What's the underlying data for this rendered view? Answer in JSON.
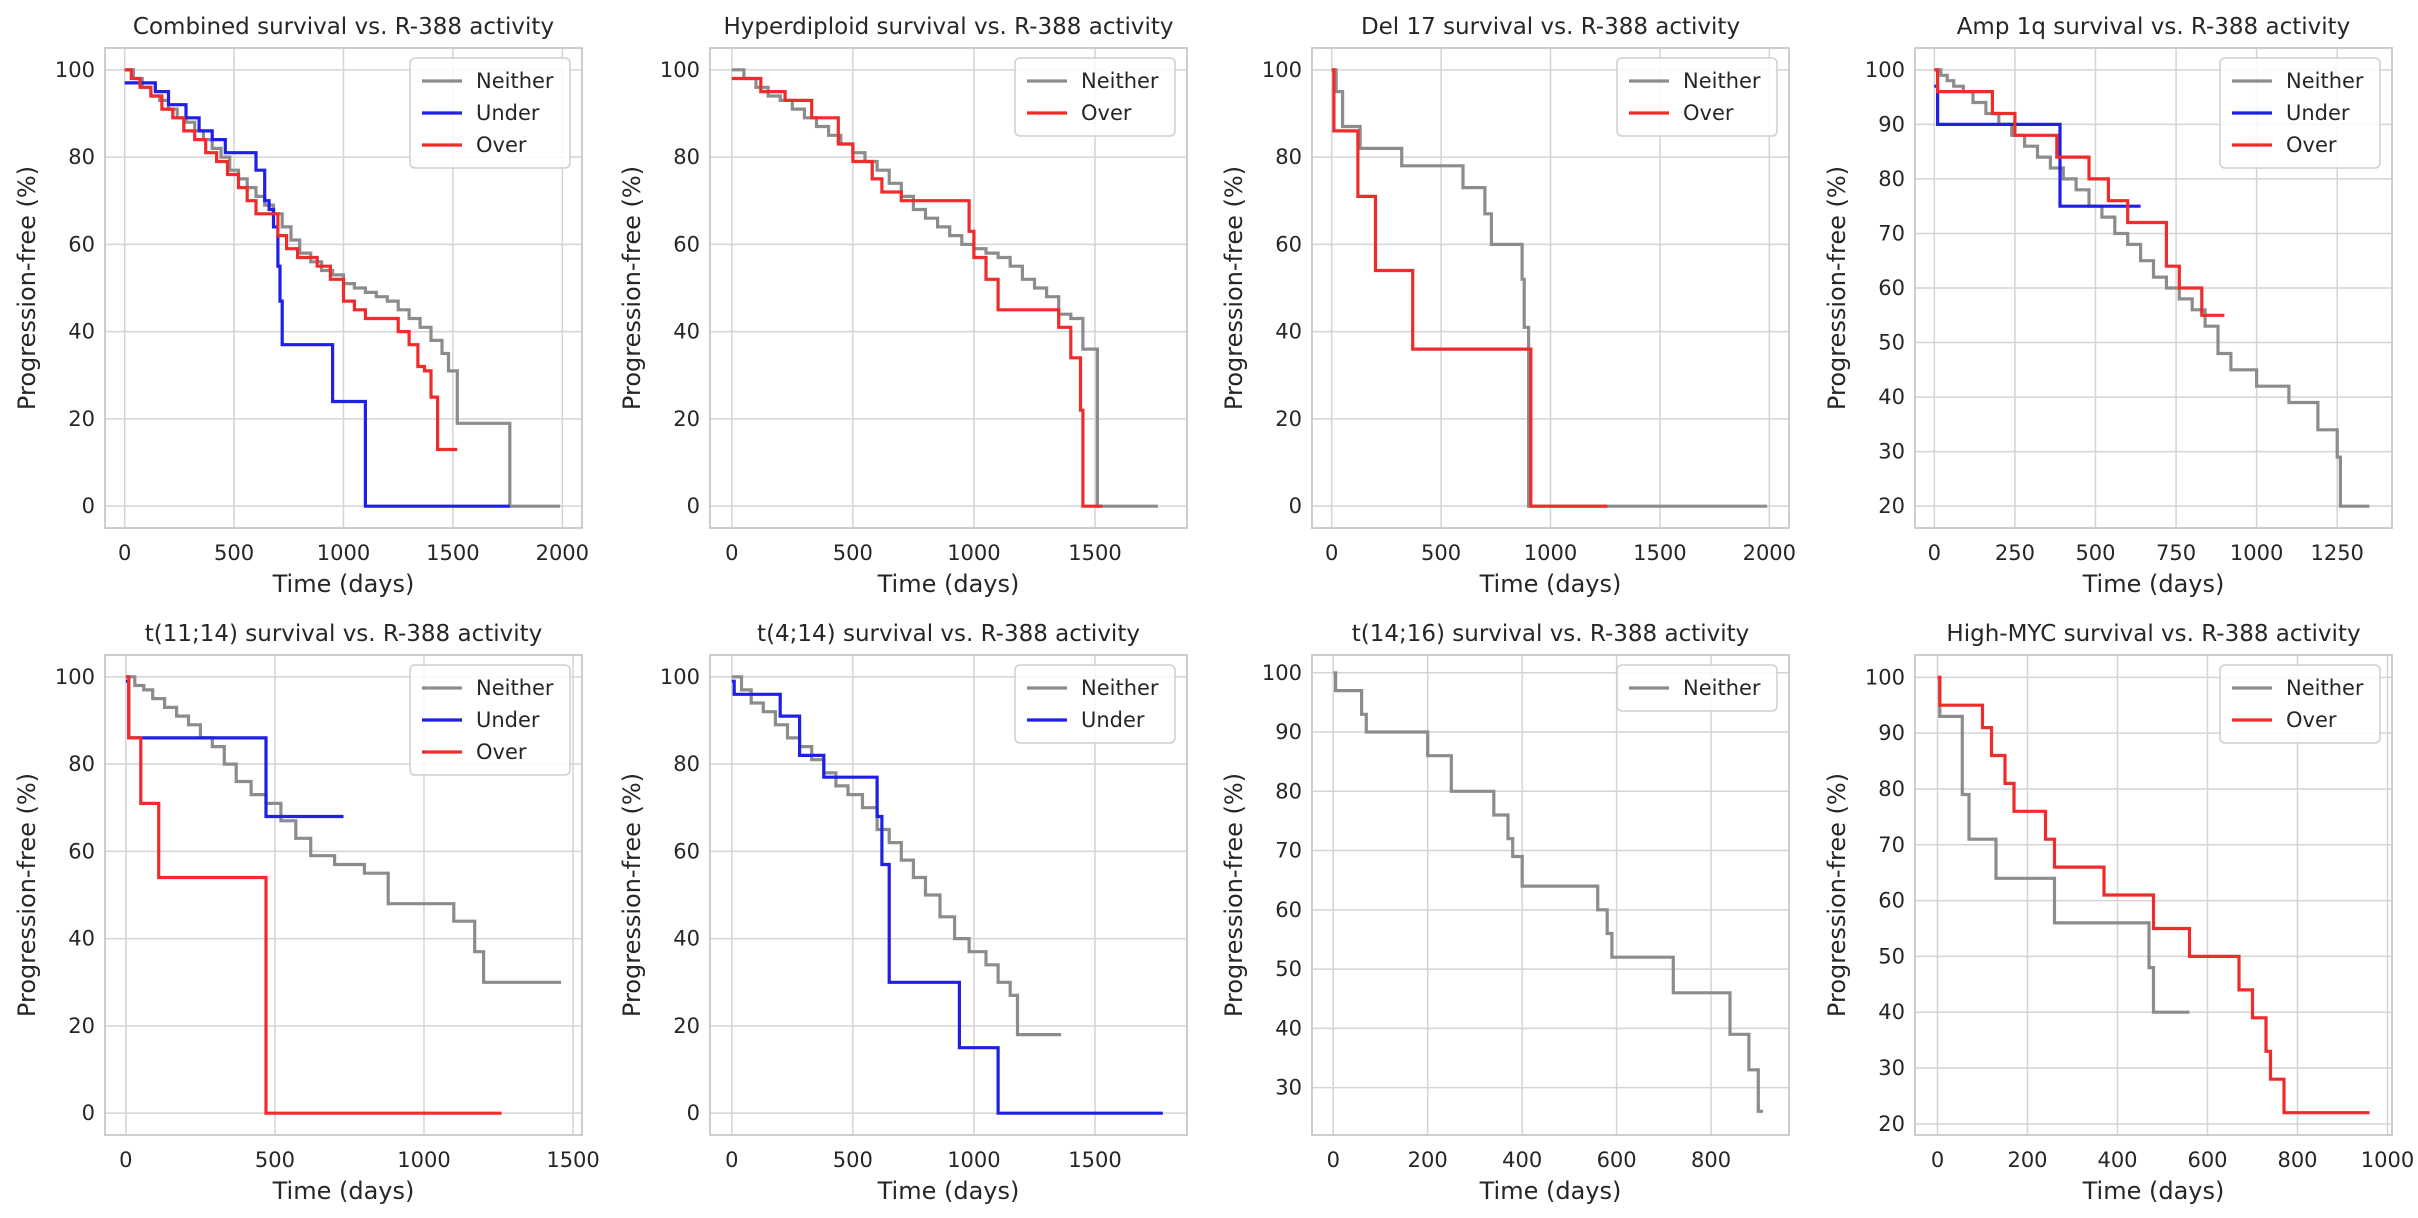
{
  "figure": {
    "description": "Kaplan-Meier progression-free survival panels"
  },
  "colors": {
    "Neither": "#8c8c8c",
    "Under": "#1f1fe6",
    "Over": "#ef2b2b",
    "grid": "#d4d4d4",
    "frame": "#c8c8c8"
  },
  "chart_data": [
    {
      "type": "line",
      "step": true,
      "title": "Combined survival vs. R-388 activity",
      "xlabel": "Time (days)",
      "ylabel": "Progression-free (%)",
      "xlim": [
        -90,
        2090
      ],
      "ylim": [
        -5,
        105
      ],
      "xticks": [
        0,
        500,
        1000,
        1500,
        2000
      ],
      "xtick_labels": [
        "0",
        "500",
        "1000",
        "1500",
        "2000"
      ],
      "yticks": [
        0,
        20,
        40,
        60,
        80,
        100
      ],
      "ytick_labels": [
        "0",
        "20",
        "40",
        "60",
        "80",
        "100"
      ],
      "legend": [
        "Neither",
        "Under",
        "Over"
      ],
      "series": [
        {
          "name": "Neither",
          "x": [
            0,
            40,
            80,
            120,
            160,
            200,
            240,
            280,
            320,
            360,
            400,
            440,
            480,
            520,
            560,
            600,
            640,
            680,
            720,
            760,
            800,
            850,
            900,
            950,
            1000,
            1050,
            1100,
            1150,
            1200,
            1250,
            1300,
            1350,
            1400,
            1450,
            1480,
            1500,
            1520,
            1760,
            1990
          ],
          "y": [
            100,
            98,
            96,
            94,
            93,
            91,
            89,
            88,
            86,
            84,
            82,
            80,
            77,
            75,
            73,
            71,
            69,
            67,
            64,
            61,
            58,
            56,
            54,
            53,
            51,
            50,
            49,
            48,
            47,
            45,
            43,
            41,
            38,
            35,
            31,
            31,
            19,
            0,
            0
          ]
        },
        {
          "name": "Under",
          "x": [
            0,
            70,
            140,
            200,
            280,
            340,
            400,
            460,
            540,
            600,
            640,
            660,
            680,
            700,
            710,
            720,
            760,
            950,
            1100,
            1760
          ],
          "y": [
            97,
            97,
            95,
            92,
            89,
            86,
            84,
            81,
            81,
            77,
            70,
            68,
            64,
            55,
            47,
            37,
            37,
            24,
            0,
            0
          ]
        },
        {
          "name": "Over",
          "x": [
            0,
            30,
            70,
            120,
            170,
            220,
            270,
            320,
            370,
            420,
            470,
            520,
            560,
            600,
            650,
            700,
            740,
            790,
            830,
            880,
            940,
            1000,
            1050,
            1100,
            1150,
            1200,
            1250,
            1300,
            1340,
            1370,
            1400,
            1430,
            1450,
            1520
          ],
          "y": [
            100,
            98,
            96,
            94,
            91,
            89,
            86,
            84,
            81,
            79,
            76,
            73,
            70,
            67,
            67,
            62,
            59,
            57,
            57,
            55,
            52,
            47,
            45,
            43,
            43,
            43,
            40,
            37,
            32,
            31,
            25,
            13,
            13,
            13
          ]
        }
      ]
    },
    {
      "type": "line",
      "step": true,
      "title": "Hyperdiploid survival vs. R-388 activity",
      "xlabel": "Time (days)",
      "ylabel": "Progression-free (%)",
      "xlim": [
        -90,
        1880
      ],
      "ylim": [
        -5,
        105
      ],
      "xticks": [
        0,
        500,
        1000,
        1500
      ],
      "xtick_labels": [
        "0",
        "500",
        "1000",
        "1500"
      ],
      "yticks": [
        0,
        20,
        40,
        60,
        80,
        100
      ],
      "ytick_labels": [
        "0",
        "20",
        "40",
        "60",
        "80",
        "100"
      ],
      "legend": [
        "Neither",
        "Over"
      ],
      "series": [
        {
          "name": "Neither",
          "x": [
            0,
            50,
            100,
            150,
            200,
            250,
            300,
            350,
            400,
            450,
            500,
            550,
            600,
            650,
            700,
            750,
            800,
            850,
            900,
            950,
            1000,
            1050,
            1100,
            1150,
            1200,
            1250,
            1300,
            1350,
            1400,
            1450,
            1500,
            1510,
            1760
          ],
          "y": [
            100,
            98,
            96,
            94,
            93,
            91,
            89,
            87,
            85,
            83,
            81,
            79,
            77,
            74,
            71,
            68,
            66,
            64,
            62,
            60,
            59,
            58,
            57,
            55,
            52,
            50,
            48,
            44,
            43,
            36,
            36,
            0,
            0
          ]
        },
        {
          "name": "Over",
          "x": [
            0,
            60,
            120,
            220,
            330,
            440,
            500,
            580,
            620,
            700,
            840,
            980,
            1000,
            1050,
            1100,
            1260,
            1350,
            1400,
            1440,
            1450,
            1530
          ],
          "y": [
            98,
            98,
            95,
            93,
            89,
            83,
            79,
            75,
            72,
            70,
            70,
            63,
            57,
            52,
            45,
            45,
            41,
            34,
            22,
            0,
            0
          ]
        }
      ]
    },
    {
      "type": "line",
      "step": true,
      "title": "Del 17 survival vs. R-388 activity",
      "xlabel": "Time (days)",
      "ylabel": "Progression-free (%)",
      "xlim": [
        -90,
        2090
      ],
      "ylim": [
        -5,
        105
      ],
      "xticks": [
        0,
        500,
        1000,
        1500,
        2000
      ],
      "xtick_labels": [
        "0",
        "500",
        "1000",
        "1500",
        "2000"
      ],
      "yticks": [
        0,
        20,
        40,
        60,
        80,
        100
      ],
      "ytick_labels": [
        "0",
        "20",
        "40",
        "60",
        "80",
        "100"
      ],
      "legend": [
        "Neither",
        "Over"
      ],
      "series": [
        {
          "name": "Neither",
          "x": [
            0,
            20,
            50,
            130,
            320,
            600,
            700,
            730,
            870,
            880,
            900,
            920,
            1990
          ],
          "y": [
            100,
            95,
            87,
            82,
            78,
            73,
            67,
            60,
            52,
            41,
            0,
            0,
            0
          ]
        },
        {
          "name": "Over",
          "x": [
            0,
            10,
            120,
            200,
            370,
            900,
            910,
            1260
          ],
          "y": [
            100,
            86,
            71,
            54,
            36,
            36,
            0,
            0
          ]
        }
      ]
    },
    {
      "type": "line",
      "step": true,
      "title": "Amp 1q survival vs. R-388 activity",
      "xlabel": "Time (days)",
      "ylabel": "Progression-free (%)",
      "xlim": [
        -60,
        1420
      ],
      "ylim": [
        16,
        104
      ],
      "xticks": [
        0,
        250,
        500,
        750,
        1000,
        1250
      ],
      "xtick_labels": [
        "0",
        "250",
        "500",
        "750",
        "1000",
        "1250"
      ],
      "yticks": [
        20,
        30,
        40,
        50,
        60,
        70,
        80,
        90,
        100
      ],
      "ytick_labels": [
        "20",
        "30",
        "40",
        "50",
        "60",
        "70",
        "80",
        "90",
        "100"
      ],
      "legend": [
        "Neither",
        "Under",
        "Over"
      ],
      "series": [
        {
          "name": "Neither",
          "x": [
            0,
            20,
            40,
            60,
            90,
            120,
            160,
            200,
            240,
            280,
            320,
            360,
            400,
            440,
            480,
            520,
            560,
            600,
            640,
            680,
            720,
            760,
            800,
            840,
            880,
            920,
            1000,
            1100,
            1190,
            1250,
            1260,
            1270,
            1350
          ],
          "y": [
            100,
            99,
            98,
            97,
            96,
            94,
            92,
            90,
            88,
            86,
            84,
            82,
            80,
            78,
            75,
            73,
            70,
            68,
            65,
            62,
            60,
            58,
            56,
            53,
            48,
            45,
            42,
            39,
            34,
            29,
            20,
            20,
            20
          ]
        },
        {
          "name": "Under",
          "x": [
            0,
            10,
            380,
            390,
            640
          ],
          "y": [
            97,
            90,
            90,
            75,
            75
          ]
        },
        {
          "name": "Over",
          "x": [
            0,
            10,
            180,
            250,
            380,
            480,
            540,
            600,
            700,
            720,
            760,
            830,
            900
          ],
          "y": [
            100,
            96,
            92,
            88,
            84,
            80,
            76,
            72,
            72,
            64,
            60,
            55,
            55
          ]
        }
      ]
    },
    {
      "type": "line",
      "step": true,
      "title": "t(11;14) survival vs. R-388 activity",
      "xlabel": "Time (days)",
      "ylabel": "Progression-free (%)",
      "xlim": [
        -70,
        1530
      ],
      "ylim": [
        -5,
        105
      ],
      "xticks": [
        0,
        500,
        1000,
        1500
      ],
      "xtick_labels": [
        "0",
        "500",
        "1000",
        "1500"
      ],
      "yticks": [
        0,
        20,
        40,
        60,
        80,
        100
      ],
      "ytick_labels": [
        "0",
        "20",
        "40",
        "60",
        "80",
        "100"
      ],
      "legend": [
        "Neither",
        "Under",
        "Over"
      ],
      "series": [
        {
          "name": "Neither",
          "x": [
            0,
            30,
            60,
            90,
            130,
            170,
            210,
            250,
            290,
            330,
            370,
            420,
            470,
            520,
            570,
            620,
            700,
            800,
            880,
            1010,
            1100,
            1170,
            1200,
            1460
          ],
          "y": [
            100,
            98,
            97,
            95,
            93,
            91,
            89,
            86,
            84,
            80,
            76,
            73,
            71,
            67,
            63,
            59,
            57,
            55,
            48,
            48,
            44,
            37,
            30,
            30
          ]
        },
        {
          "name": "Under",
          "x": [
            0,
            10,
            460,
            470,
            730
          ],
          "y": [
            99,
            86,
            86,
            68,
            68
          ]
        },
        {
          "name": "Over",
          "x": [
            0,
            10,
            50,
            110,
            460,
            470,
            1260
          ],
          "y": [
            100,
            86,
            71,
            54,
            54,
            0,
            0
          ]
        }
      ]
    },
    {
      "type": "line",
      "step": true,
      "title": "t(4;14) survival vs. R-388 activity",
      "xlabel": "Time (days)",
      "ylabel": "Progression-free (%)",
      "xlim": [
        -90,
        1880
      ],
      "ylim": [
        -5,
        105
      ],
      "xticks": [
        0,
        500,
        1000,
        1500
      ],
      "xtick_labels": [
        "0",
        "500",
        "1000",
        "1500"
      ],
      "yticks": [
        0,
        20,
        40,
        60,
        80,
        100
      ],
      "ytick_labels": [
        "0",
        "20",
        "40",
        "60",
        "80",
        "100"
      ],
      "legend": [
        "Neither",
        "Under"
      ],
      "series": [
        {
          "name": "Neither",
          "x": [
            0,
            40,
            80,
            130,
            180,
            230,
            280,
            330,
            380,
            430,
            480,
            540,
            600,
            650,
            700,
            750,
            800,
            860,
            920,
            980,
            1050,
            1100,
            1150,
            1180,
            1360
          ],
          "y": [
            100,
            97,
            94,
            92,
            89,
            86,
            84,
            81,
            78,
            75,
            73,
            70,
            65,
            62,
            58,
            54,
            50,
            45,
            40,
            37,
            34,
            30,
            27,
            18,
            18
          ]
        },
        {
          "name": "Under",
          "x": [
            0,
            10,
            200,
            280,
            380,
            600,
            620,
            650,
            720,
            940,
            1100,
            1780
          ],
          "y": [
            99,
            96,
            91,
            82,
            77,
            68,
            57,
            30,
            30,
            15,
            0,
            0
          ]
        }
      ]
    },
    {
      "type": "line",
      "step": true,
      "title": "t(14;16) survival vs. R-388 activity",
      "xlabel": "Time (days)",
      "ylabel": "Progression-free (%)",
      "xlim": [
        -45,
        965
      ],
      "ylim": [
        22,
        103
      ],
      "xticks": [
        0,
        200,
        400,
        600,
        800
      ],
      "xtick_labels": [
        "0",
        "200",
        "400",
        "600",
        "800"
      ],
      "yticks": [
        30,
        40,
        50,
        60,
        70,
        80,
        90,
        100
      ],
      "ytick_labels": [
        "30",
        "40",
        "50",
        "60",
        "70",
        "80",
        "90",
        "100"
      ],
      "legend": [
        "Neither"
      ],
      "series": [
        {
          "name": "Neither",
          "x": [
            0,
            5,
            60,
            70,
            200,
            250,
            340,
            370,
            380,
            400,
            560,
            580,
            590,
            720,
            840,
            880,
            900,
            910
          ],
          "y": [
            100,
            97,
            93,
            90,
            86,
            80,
            76,
            72,
            69,
            64,
            60,
            56,
            52,
            46,
            39,
            33,
            26,
            26
          ]
        }
      ]
    },
    {
      "type": "line",
      "step": true,
      "title": "High-MYC survival vs. R-388 activity",
      "xlabel": "Time (days)",
      "ylabel": "Progression-free (%)",
      "xlim": [
        -50,
        1010
      ],
      "ylim": [
        18,
        104
      ],
      "xticks": [
        0,
        200,
        400,
        600,
        800,
        1000
      ],
      "xtick_labels": [
        "0",
        "200",
        "400",
        "600",
        "800",
        "1000"
      ],
      "yticks": [
        20,
        30,
        40,
        50,
        60,
        70,
        80,
        90,
        100
      ],
      "ytick_labels": [
        "20",
        "30",
        "40",
        "50",
        "60",
        "70",
        "80",
        "90",
        "100"
      ],
      "legend": [
        "Neither",
        "Over"
      ],
      "series": [
        {
          "name": "Neither",
          "x": [
            0,
            5,
            55,
            70,
            130,
            260,
            470,
            480,
            500,
            560
          ],
          "y": [
            100,
            93,
            79,
            71,
            64,
            56,
            48,
            40,
            40,
            40
          ]
        },
        {
          "name": "Over",
          "x": [
            0,
            5,
            100,
            120,
            150,
            170,
            240,
            260,
            370,
            480,
            560,
            670,
            700,
            730,
            740,
            770,
            960
          ],
          "y": [
            100,
            95,
            91,
            86,
            81,
            76,
            71,
            66,
            61,
            55,
            50,
            44,
            39,
            33,
            28,
            22,
            22
          ]
        }
      ]
    }
  ]
}
